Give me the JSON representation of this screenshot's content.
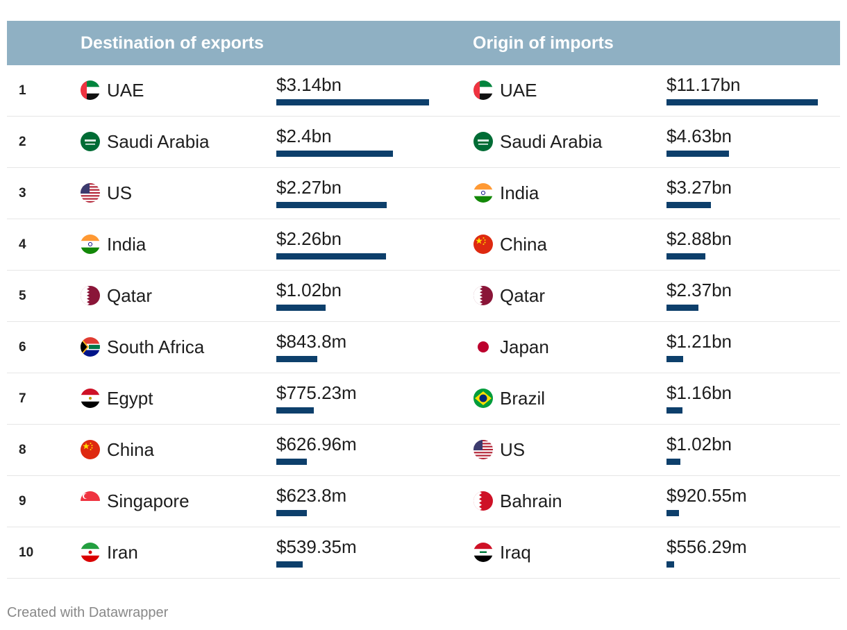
{
  "chart_data": {
    "type": "table",
    "columns": [
      "Destination of exports",
      "Origin of imports"
    ],
    "rows": [
      {
        "rank": "1",
        "exp_country": "UAE",
        "exp_flag": "uae",
        "exp_value": 3.14,
        "exp_label": "$3.14bn",
        "imp_country": "UAE",
        "imp_flag": "uae",
        "imp_value": 11.17,
        "imp_label": "$11.17bn"
      },
      {
        "rank": "2",
        "exp_country": "Saudi Arabia",
        "exp_flag": "saudi",
        "exp_value": 2.4,
        "exp_label": "$2.4bn",
        "imp_country": "Saudi Arabia",
        "imp_flag": "saudi",
        "imp_value": 4.63,
        "imp_label": "$4.63bn"
      },
      {
        "rank": "3",
        "exp_country": "US",
        "exp_flag": "us",
        "exp_value": 2.27,
        "exp_label": "$2.27bn",
        "imp_country": "India",
        "imp_flag": "india",
        "imp_value": 3.27,
        "imp_label": "$3.27bn"
      },
      {
        "rank": "4",
        "exp_country": "India",
        "exp_flag": "india",
        "exp_value": 2.26,
        "exp_label": "$2.26bn",
        "imp_country": "China",
        "imp_flag": "china",
        "imp_value": 2.88,
        "imp_label": "$2.88bn"
      },
      {
        "rank": "5",
        "exp_country": "Qatar",
        "exp_flag": "qatar",
        "exp_value": 1.02,
        "exp_label": "$1.02bn",
        "imp_country": "Qatar",
        "imp_flag": "qatar",
        "imp_value": 2.37,
        "imp_label": "$2.37bn"
      },
      {
        "rank": "6",
        "exp_country": "South Africa",
        "exp_flag": "southafrica",
        "exp_value": 0.8438,
        "exp_label": "$843.8m",
        "imp_country": "Japan",
        "imp_flag": "japan",
        "imp_value": 1.21,
        "imp_label": "$1.21bn"
      },
      {
        "rank": "7",
        "exp_country": "Egypt",
        "exp_flag": "egypt",
        "exp_value": 0.77523,
        "exp_label": "$775.23m",
        "imp_country": "Brazil",
        "imp_flag": "brazil",
        "imp_value": 1.16,
        "imp_label": "$1.16bn"
      },
      {
        "rank": "8",
        "exp_country": "China",
        "exp_flag": "china",
        "exp_value": 0.62696,
        "exp_label": "$626.96m",
        "imp_country": "US",
        "imp_flag": "us",
        "imp_value": 1.02,
        "imp_label": "$1.02bn"
      },
      {
        "rank": "9",
        "exp_country": "Singapore",
        "exp_flag": "singapore",
        "exp_value": 0.6238,
        "exp_label": "$623.8m",
        "imp_country": "Bahrain",
        "imp_flag": "bahrain",
        "imp_value": 0.92055,
        "imp_label": "$920.55m"
      },
      {
        "rank": "10",
        "exp_country": "Iran",
        "exp_flag": "iran",
        "exp_value": 0.53935,
        "exp_label": "$539.35m",
        "imp_country": "Iraq",
        "imp_flag": "iraq",
        "imp_value": 0.55629,
        "imp_label": "$556.29m"
      }
    ],
    "unit": "USD billions"
  },
  "colors": {
    "header_bg": "#8fb0c3",
    "bar": "#0d3f6b"
  },
  "footer": "Created with Datawrapper"
}
